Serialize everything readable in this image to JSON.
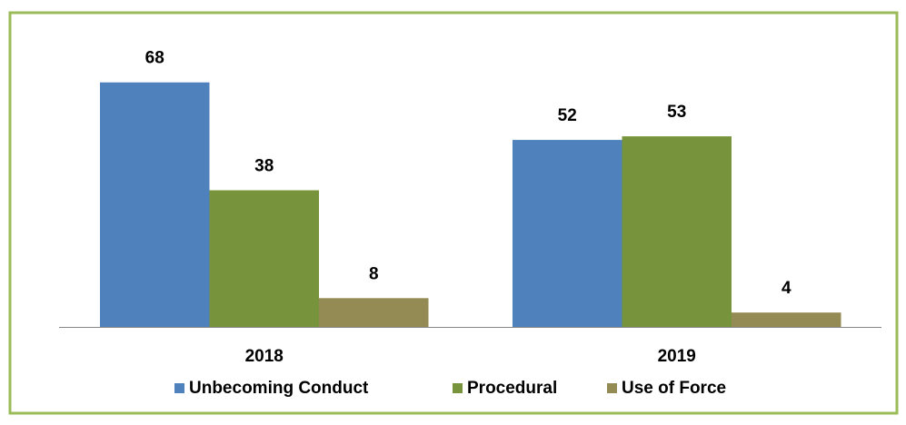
{
  "chart_data": {
    "type": "bar",
    "categories": [
      "2018",
      "2019"
    ],
    "series": [
      {
        "name": "Unbecoming Conduct",
        "color": "#4f81bd",
        "values": [
          68,
          52
        ]
      },
      {
        "name": "Procedural",
        "color": "#77933c",
        "values": [
          38,
          53
        ]
      },
      {
        "name": "Use of Force",
        "color": "#948a54",
        "values": [
          8,
          4
        ]
      }
    ],
    "legend": "bottom"
  }
}
